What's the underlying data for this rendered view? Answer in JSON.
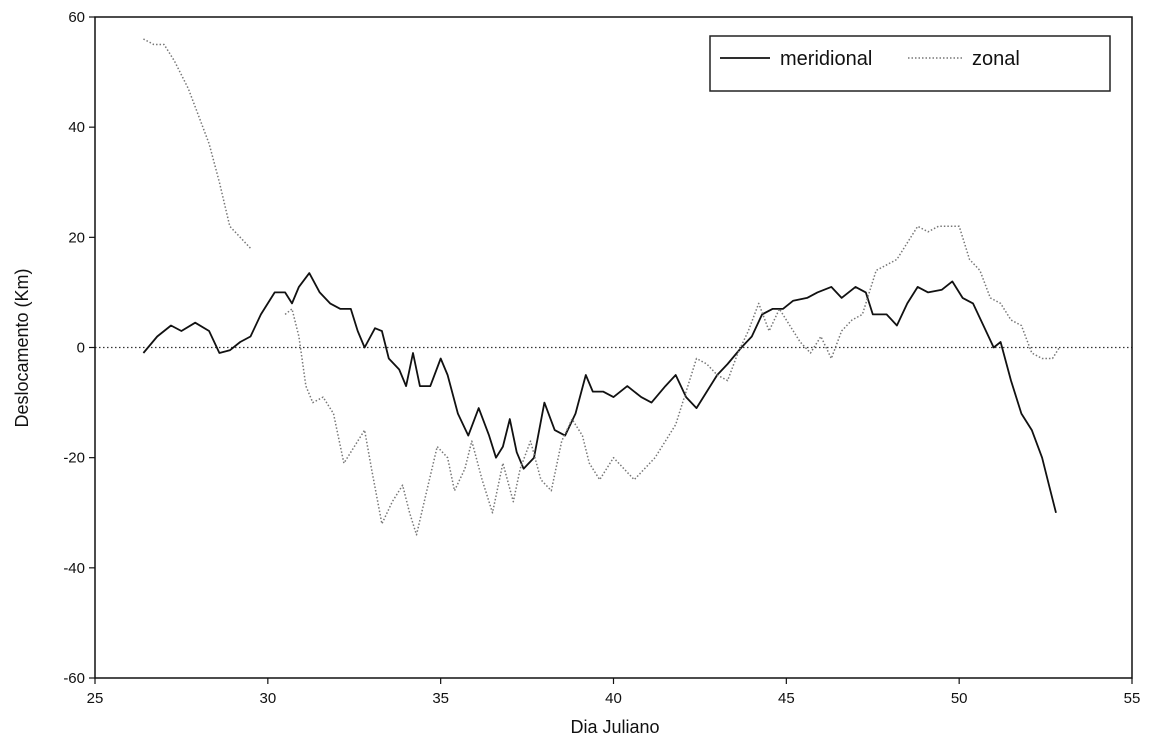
{
  "chart_data": {
    "type": "line",
    "title": "",
    "xlabel": "Dia Juliano",
    "ylabel": "Deslocamento (Km)",
    "xlim": [
      25,
      55
    ],
    "ylim": [
      -60,
      60
    ],
    "x_ticks": [
      "25",
      "30",
      "35",
      "40",
      "45",
      "50",
      "55"
    ],
    "y_ticks": [
      "-60",
      "-40",
      "-20",
      "0",
      "20",
      "40",
      "60"
    ],
    "grid": false,
    "legend_position": "top-right",
    "reference_line": {
      "y": 0,
      "style": "dotted"
    },
    "series": [
      {
        "name": "meridional",
        "style": "solid",
        "color": "#111111",
        "points": [
          [
            26.4,
            -1
          ],
          [
            26.8,
            2
          ],
          [
            27.2,
            4
          ],
          [
            27.5,
            3
          ],
          [
            27.9,
            4.5
          ],
          [
            28.3,
            3
          ],
          [
            28.6,
            -1
          ],
          [
            28.9,
            -0.5
          ],
          [
            29.2,
            1
          ],
          [
            29.5,
            2
          ],
          [
            29.8,
            6
          ],
          [
            30.2,
            10
          ],
          [
            30.5,
            10
          ],
          [
            30.7,
            8
          ],
          [
            30.9,
            11
          ],
          [
            31.2,
            13.5
          ],
          [
            31.5,
            10
          ],
          [
            31.8,
            8
          ],
          [
            32.1,
            7
          ],
          [
            32.4,
            7
          ],
          [
            32.6,
            3
          ],
          [
            32.8,
            0
          ],
          [
            33.1,
            3.5
          ],
          [
            33.3,
            3
          ],
          [
            33.5,
            -2
          ],
          [
            33.8,
            -4
          ],
          [
            34.0,
            -7
          ],
          [
            34.2,
            -1
          ],
          [
            34.4,
            -7
          ],
          [
            34.7,
            -7
          ],
          [
            35.0,
            -2
          ],
          [
            35.2,
            -5
          ],
          [
            35.5,
            -12
          ],
          [
            35.8,
            -16
          ],
          [
            36.1,
            -11
          ],
          [
            36.4,
            -16
          ],
          [
            36.6,
            -20
          ],
          [
            36.8,
            -18
          ],
          [
            37.0,
            -13
          ],
          [
            37.2,
            -19
          ],
          [
            37.4,
            -22
          ],
          [
            37.7,
            -20
          ],
          [
            38.0,
            -10
          ],
          [
            38.3,
            -15
          ],
          [
            38.6,
            -16
          ],
          [
            38.9,
            -12
          ],
          [
            39.2,
            -5
          ],
          [
            39.4,
            -8
          ],
          [
            39.7,
            -8
          ],
          [
            40.0,
            -9
          ],
          [
            40.4,
            -7
          ],
          [
            40.8,
            -9
          ],
          [
            41.1,
            -10
          ],
          [
            41.5,
            -7
          ],
          [
            41.8,
            -5
          ],
          [
            42.1,
            -9
          ],
          [
            42.4,
            -11
          ],
          [
            42.7,
            -8
          ],
          [
            43.0,
            -5
          ],
          [
            43.3,
            -3
          ],
          [
            43.7,
            0
          ],
          [
            44.0,
            2
          ],
          [
            44.3,
            6
          ],
          [
            44.6,
            7
          ],
          [
            44.9,
            7
          ],
          [
            45.2,
            8.5
          ],
          [
            45.6,
            9
          ],
          [
            45.9,
            10
          ],
          [
            46.3,
            11
          ],
          [
            46.6,
            9
          ],
          [
            47.0,
            11
          ],
          [
            47.3,
            10
          ],
          [
            47.5,
            6
          ],
          [
            47.9,
            6
          ],
          [
            48.2,
            4
          ],
          [
            48.5,
            8
          ],
          [
            48.8,
            11
          ],
          [
            49.1,
            10
          ],
          [
            49.5,
            10.5
          ],
          [
            49.8,
            12
          ],
          [
            50.1,
            9
          ],
          [
            50.4,
            8
          ],
          [
            50.7,
            4
          ],
          [
            51.0,
            0
          ],
          [
            51.2,
            1
          ],
          [
            51.5,
            -6
          ],
          [
            51.8,
            -12
          ],
          [
            52.1,
            -15
          ],
          [
            52.4,
            -20
          ],
          [
            52.6,
            -25
          ],
          [
            52.8,
            -30
          ]
        ]
      },
      {
        "name": "zonal",
        "style": "dotted",
        "color": "#777777",
        "points": [
          [
            26.4,
            56
          ],
          [
            26.7,
            55
          ],
          [
            27.0,
            55
          ],
          [
            27.3,
            52
          ],
          [
            27.7,
            47
          ],
          [
            28.0,
            42
          ],
          [
            28.3,
            37
          ],
          [
            28.6,
            30
          ],
          [
            28.9,
            22
          ],
          [
            29.2,
            20
          ],
          [
            29.5,
            18
          ],
          null,
          [
            30.5,
            6
          ],
          [
            30.7,
            7
          ],
          [
            30.9,
            2
          ],
          [
            31.1,
            -7
          ],
          [
            31.3,
            -10
          ],
          [
            31.6,
            -9
          ],
          [
            31.9,
            -12
          ],
          [
            32.2,
            -21
          ],
          [
            32.5,
            -18
          ],
          [
            32.8,
            -15
          ],
          [
            33.0,
            -22
          ],
          [
            33.3,
            -32
          ],
          [
            33.6,
            -28
          ],
          [
            33.9,
            -25
          ],
          [
            34.1,
            -30
          ],
          [
            34.3,
            -34
          ],
          [
            34.6,
            -26
          ],
          [
            34.9,
            -18
          ],
          [
            35.2,
            -20
          ],
          [
            35.4,
            -26
          ],
          [
            35.7,
            -22
          ],
          [
            35.9,
            -17
          ],
          [
            36.2,
            -24
          ],
          [
            36.5,
            -30
          ],
          [
            36.8,
            -21
          ],
          [
            37.1,
            -28
          ],
          [
            37.3,
            -22
          ],
          [
            37.6,
            -17
          ],
          [
            37.9,
            -24
          ],
          [
            38.2,
            -26
          ],
          [
            38.5,
            -17
          ],
          [
            38.8,
            -13
          ],
          [
            39.1,
            -16
          ],
          [
            39.3,
            -21
          ],
          [
            39.6,
            -24
          ],
          [
            40.0,
            -20
          ],
          [
            40.3,
            -22
          ],
          [
            40.6,
            -24
          ],
          [
            40.9,
            -22
          ],
          [
            41.2,
            -20
          ],
          [
            41.5,
            -17
          ],
          [
            41.8,
            -14
          ],
          [
            42.1,
            -8
          ],
          [
            42.4,
            -2
          ],
          [
            42.7,
            -3
          ],
          [
            43.0,
            -5
          ],
          [
            43.3,
            -6
          ],
          [
            43.6,
            -1
          ],
          [
            43.9,
            3
          ],
          [
            44.2,
            8
          ],
          [
            44.5,
            3
          ],
          [
            44.8,
            7
          ],
          [
            45.1,
            4
          ],
          [
            45.4,
            1
          ],
          [
            45.7,
            -1
          ],
          [
            46.0,
            2
          ],
          [
            46.3,
            -2
          ],
          [
            46.6,
            3
          ],
          [
            46.9,
            5
          ],
          [
            47.2,
            6
          ],
          [
            47.6,
            14
          ],
          [
            47.9,
            15
          ],
          [
            48.2,
            16
          ],
          [
            48.5,
            19
          ],
          [
            48.8,
            22
          ],
          [
            49.1,
            21
          ],
          [
            49.4,
            22
          ],
          [
            49.7,
            22
          ],
          [
            50.0,
            22
          ],
          [
            50.3,
            16
          ],
          [
            50.6,
            14
          ],
          [
            50.9,
            9
          ],
          [
            51.2,
            8
          ],
          [
            51.5,
            5
          ],
          [
            51.8,
            4
          ],
          [
            52.1,
            -1
          ],
          [
            52.4,
            -2
          ],
          [
            52.7,
            -2
          ],
          [
            52.9,
            0
          ]
        ]
      }
    ]
  }
}
